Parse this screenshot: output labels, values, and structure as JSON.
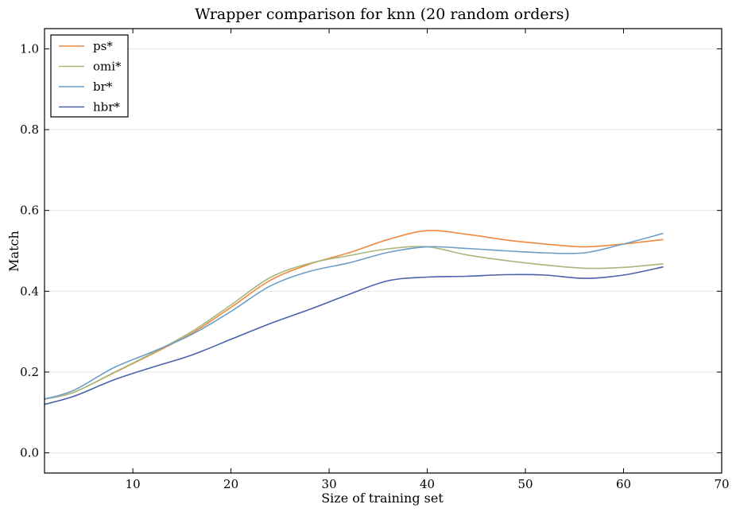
{
  "chart_data": {
    "type": "line",
    "title": "Wrapper comparison for knn (20 random orders)",
    "xlabel": "Size of training set",
    "ylabel": "Match",
    "xlim": [
      1,
      70
    ],
    "ylim": [
      -0.05,
      1.05
    ],
    "xticks": [
      10,
      20,
      30,
      40,
      50,
      60,
      70
    ],
    "xtick_labels": [
      "10",
      "20",
      "30",
      "40",
      "50",
      "60",
      "70"
    ],
    "yticks": [
      0.0,
      0.2,
      0.4,
      0.6,
      0.8,
      1.0
    ],
    "ytick_labels": [
      "0.0",
      "0.2",
      "0.4",
      "0.6",
      "0.8",
      "1.0"
    ],
    "grid": "horizontal",
    "legend_position": "top-left",
    "x": [
      1,
      4,
      8,
      12,
      16,
      20,
      24,
      28,
      32,
      36,
      40,
      44,
      48,
      52,
      56,
      60,
      64
    ],
    "series": [
      {
        "name": "ps*",
        "color": "#ee8a3f",
        "values": [
          0.133,
          0.15,
          0.197,
          0.245,
          0.296,
          0.36,
          0.427,
          0.467,
          0.495,
          0.528,
          0.55,
          0.541,
          0.527,
          0.517,
          0.51,
          0.517,
          0.528
        ]
      },
      {
        "name": "omi*",
        "color": "#a8b87c",
        "values": [
          0.133,
          0.15,
          0.198,
          0.247,
          0.3,
          0.366,
          0.434,
          0.469,
          0.488,
          0.505,
          0.51,
          0.49,
          0.476,
          0.465,
          0.457,
          0.459,
          0.468
        ]
      },
      {
        "name": "br*",
        "color": "#6c9ec8",
        "values": [
          0.133,
          0.155,
          0.21,
          0.25,
          0.293,
          0.35,
          0.413,
          0.449,
          0.47,
          0.496,
          0.51,
          0.506,
          0.5,
          0.495,
          0.495,
          0.517,
          0.543
        ]
      },
      {
        "name": "hbr*",
        "color": "#4a62ab",
        "values": [
          0.12,
          0.14,
          0.18,
          0.212,
          0.242,
          0.281,
          0.32,
          0.355,
          0.392,
          0.426,
          0.435,
          0.437,
          0.441,
          0.44,
          0.432,
          0.44,
          0.46
        ]
      }
    ]
  }
}
